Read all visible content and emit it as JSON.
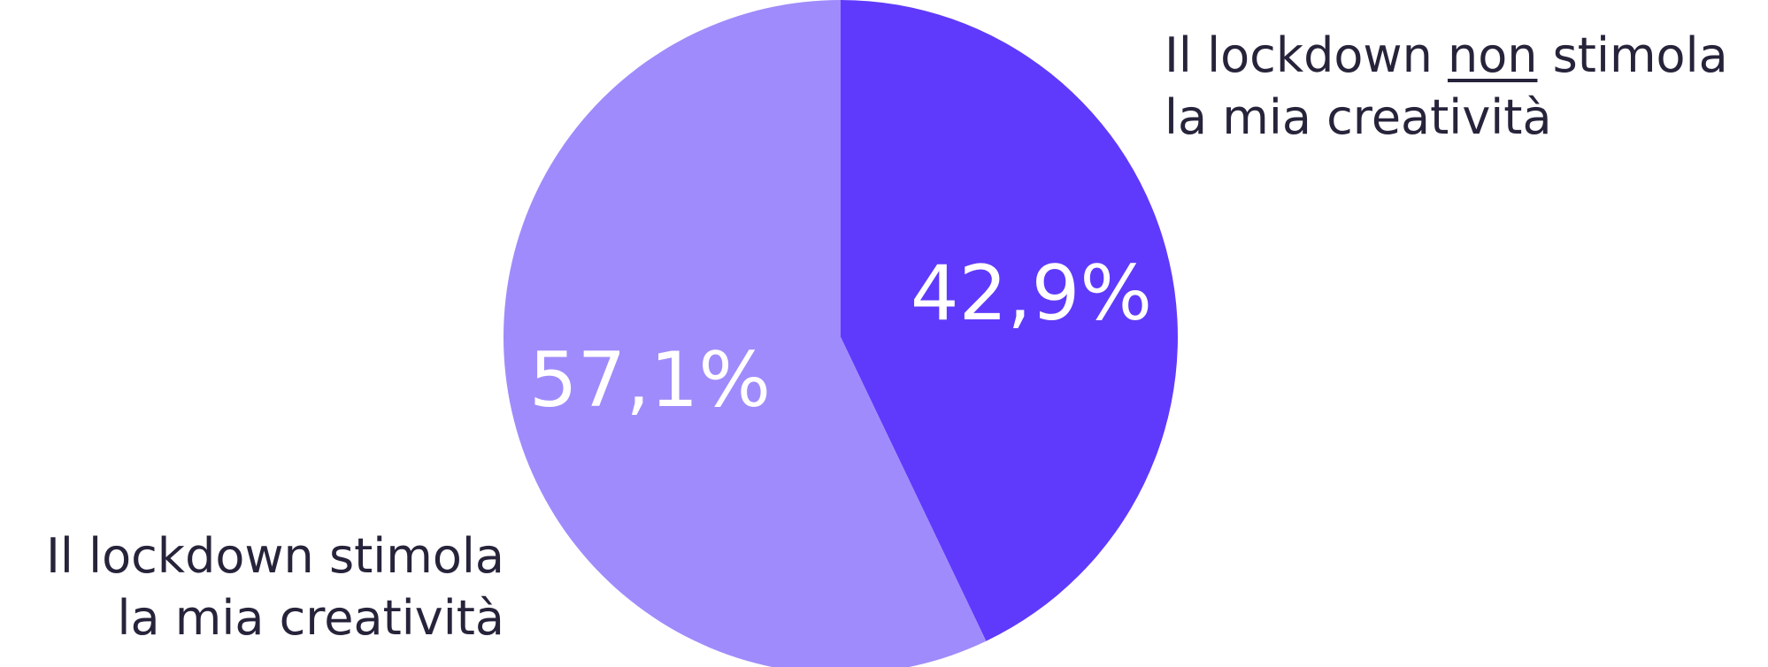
{
  "chart_data": {
    "type": "pie",
    "start_angle_deg": 0,
    "direction": "clockwise",
    "slices": [
      {
        "name_lines": [
          {
            "before": "Il lockdown ",
            "underlined": "non",
            "after": " stimola"
          },
          {
            "before": "la mia creatività",
            "underlined": "",
            "after": ""
          }
        ],
        "value": 42.9,
        "label": "42,9%",
        "color": "#5f3afc"
      },
      {
        "name_lines": [
          {
            "before": "Il lockdown stimola",
            "underlined": "",
            "after": ""
          },
          {
            "before": "la mia creatività",
            "underlined": "",
            "after": ""
          }
        ],
        "value": 57.1,
        "label": "57,1%",
        "color": "#a08bfc"
      }
    ]
  }
}
